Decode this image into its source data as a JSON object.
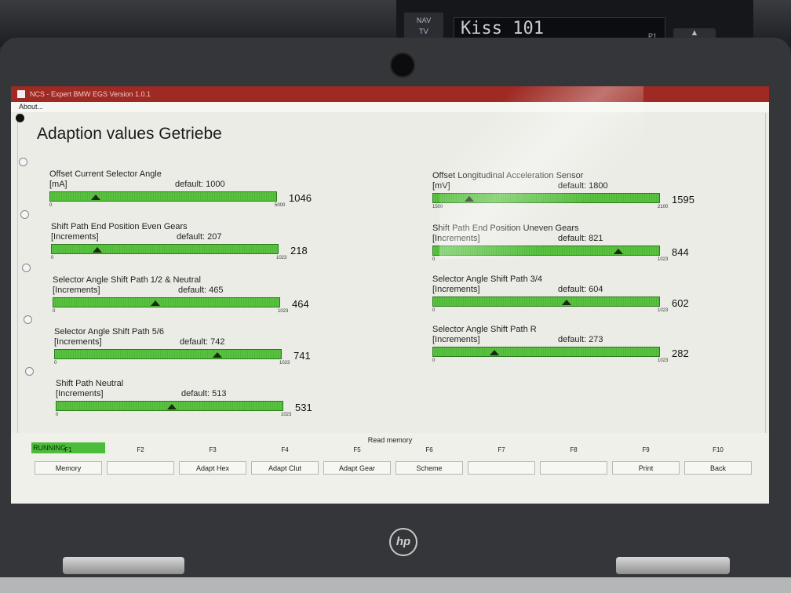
{
  "car": {
    "station": "Kiss 101",
    "preset": "P1",
    "radio_buttons": [
      "NAV",
      "TV"
    ]
  },
  "window": {
    "title": "NCS - Expert BMW EGS Version 1.0.1",
    "menu": [
      "About..."
    ]
  },
  "page": {
    "title": "Adaption values Getriebe"
  },
  "gauges_left": [
    {
      "name": "Offset Current Selector Angle",
      "unit": "[mA]",
      "default": "default: 1000",
      "value": "1046",
      "min": "0",
      "max": "5000",
      "fraction": 0.2
    },
    {
      "name": "Shift Path End Position Even Gears",
      "unit": "[Increments]",
      "default": "default: 207",
      "value": "218",
      "min": "0",
      "max": "1023",
      "fraction": 0.2
    },
    {
      "name": "Selector Angle Shift Path 1/2 & Neutral",
      "unit": "[Increments]",
      "default": "default: 465",
      "value": "464",
      "min": "0",
      "max": "1023",
      "fraction": 0.45
    },
    {
      "name": "Selector Angle Shift Path 5/6",
      "unit": "[Increments]",
      "default": "default: 742",
      "value": "741",
      "min": "0",
      "max": "1023",
      "fraction": 0.72
    },
    {
      "name": "Shift Path Neutral",
      "unit": "[Increments]",
      "default": "default: 513",
      "value": "531",
      "min": "0",
      "max": "1023",
      "fraction": 0.51
    }
  ],
  "gauges_right": [
    {
      "name": "Offset Longitudinal Acceleration Sensor",
      "unit": "[mV]",
      "default": "default: 1800",
      "value": "1595",
      "min": "1500",
      "max": "2100",
      "fraction": 0.16
    },
    {
      "name": "Shift Path End Position Uneven Gears",
      "unit": "[Increments]",
      "default": "default: 821",
      "value": "844",
      "min": "0",
      "max": "1023",
      "fraction": 0.82
    },
    {
      "name": "Selector Angle Shift Path 3/4",
      "unit": "[Increments]",
      "default": "default: 604",
      "value": "602",
      "min": "0",
      "max": "1023",
      "fraction": 0.59
    },
    {
      "name": "Selector Angle Shift Path R",
      "unit": "[Increments]",
      "default": "default: 273",
      "value": "282",
      "min": "0",
      "max": "1023",
      "fraction": 0.27
    }
  ],
  "footer": {
    "read_memory": "Read memory",
    "status": "RUNNING",
    "fkeys": [
      {
        "key": "F1",
        "label": "Memory"
      },
      {
        "key": "F2",
        "label": ""
      },
      {
        "key": "F3",
        "label": "Adapt Hex"
      },
      {
        "key": "F4",
        "label": "Adapt Clut"
      },
      {
        "key": "F5",
        "label": "Adapt Gear"
      },
      {
        "key": "F6",
        "label": "Scheme"
      },
      {
        "key": "F7",
        "label": ""
      },
      {
        "key": "F8",
        "label": ""
      },
      {
        "key": "F9",
        "label": "Print"
      },
      {
        "key": "F10",
        "label": "Back"
      }
    ]
  },
  "colors": {
    "titlebar": "#9e2a23",
    "gauge_fill": "#59c23f",
    "status": "#4cbd3b"
  },
  "branding": {
    "laptop_logo": "hp"
  }
}
